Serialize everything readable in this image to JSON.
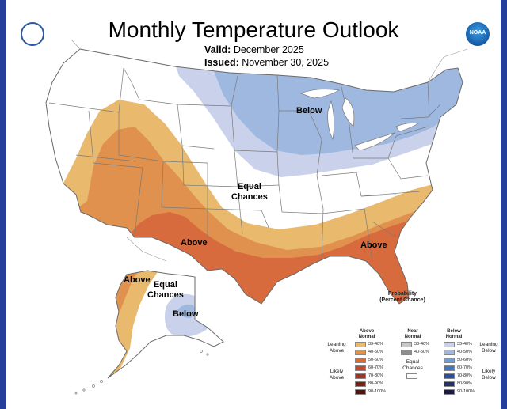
{
  "title": "Monthly Temperature Outlook",
  "valid": {
    "label": "Valid:",
    "value": "December 2025"
  },
  "issued": {
    "label": "Issued:",
    "value": "November 30, 2025"
  },
  "logos": {
    "left": "noaa-commerce-seal-icon",
    "right": "noaa-logo-icon",
    "right_text": "NOAA"
  },
  "colors": {
    "above_33_40": "#e9b96e",
    "above_40_50": "#e0914d",
    "above_50_60": "#d76b3e",
    "below_33_40": "#c9d2ea",
    "below_40_50": "#9fb8e0",
    "land": "#ffffff",
    "water": "#ffffff",
    "border": "#7a7a7a",
    "frame": "#243e9c"
  },
  "map_labels": {
    "below_conus": "Below",
    "equal_conus": "Equal\nChances",
    "above_sw": "Above",
    "above_se": "Above",
    "above_ak": "Above",
    "equal_ak": "Equal\nChances",
    "below_ak": "Below"
  },
  "legend": {
    "title": "Probability\n(Percent Chance)",
    "above_head": "Above\nNormal",
    "near_head": "Near\nNormal",
    "below_head": "Below\nNormal",
    "leaning_above": "Leaning\nAbove",
    "likely_above": "Likely\nAbove",
    "leaning_below": "Leaning\nBelow",
    "likely_below": "Likely\nBelow",
    "equal_chances": "Equal\nChances",
    "above_rows": [
      {
        "label": "33-40%",
        "color": "#e9b96e"
      },
      {
        "label": "40-50%",
        "color": "#e0914d"
      },
      {
        "label": "50-60%",
        "color": "#d76b3e"
      },
      {
        "label": "60-70%",
        "color": "#c8462a"
      },
      {
        "label": "70-80%",
        "color": "#a83220"
      },
      {
        "label": "80-90%",
        "color": "#7d2014"
      },
      {
        "label": "90-100%",
        "color": "#54140c"
      }
    ],
    "near_rows": [
      {
        "label": "33-40%",
        "color": "#c8c8c8"
      },
      {
        "label": "40-50%",
        "color": "#8e8e8e"
      }
    ],
    "below_rows": [
      {
        "label": "33-40%",
        "color": "#c9d2ea"
      },
      {
        "label": "40-50%",
        "color": "#9fb8e0"
      },
      {
        "label": "50-60%",
        "color": "#6f9ed6"
      },
      {
        "label": "60-70%",
        "color": "#3f78c4"
      },
      {
        "label": "70-80%",
        "color": "#2850a0"
      },
      {
        "label": "80-90%",
        "color": "#24306e"
      },
      {
        "label": "90-100%",
        "color": "#1a1a4a"
      }
    ]
  }
}
